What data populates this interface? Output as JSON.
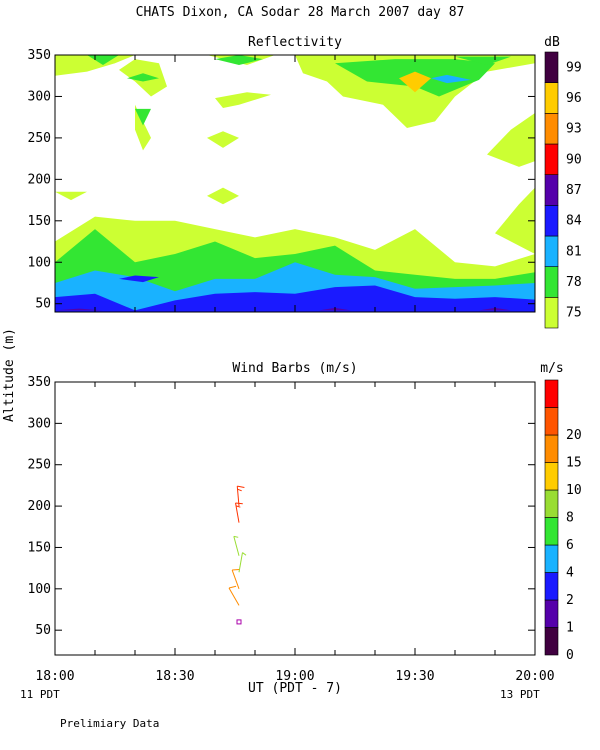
{
  "header": {
    "title": "CHATS Dixon, CA   Sodar  28 March 2007   day  87"
  },
  "footer": {
    "left_note": "11 PDT",
    "right_note": "13 PDT",
    "preliminary": "Prelimiary Data"
  },
  "chart_data": [
    {
      "type": "heatmap",
      "title": "Reflectivity",
      "ylabel": "Altitude (m)",
      "xlabel": "UT  (PDT - 7)",
      "x_ticks": [
        "18:00",
        "18:30",
        "19:00",
        "19:30",
        "20:00"
      ],
      "x_range": [
        "18:00",
        "20:00"
      ],
      "y_ticks": [
        50,
        100,
        150,
        200,
        250,
        300,
        350
      ],
      "ylim": [
        40,
        350
      ],
      "colorbar": {
        "unit": "dB",
        "labels": [
          75,
          78,
          81,
          84,
          87,
          90,
          93,
          96,
          99
        ],
        "colors": [
          "#ccff33",
          "#33e633",
          "#19b2ff",
          "#1a1aff",
          "#5500aa",
          "#ff0000",
          "#ff8c00",
          "#ffcc00",
          "#400040"
        ]
      },
      "bands": [
        {
          "level_dB": 84,
          "color": "#1a1aff",
          "upper": [
            [
              0,
              58
            ],
            [
              10,
              62
            ],
            [
              20,
              42
            ],
            [
              30,
              54
            ],
            [
              40,
              62
            ],
            [
              50,
              64
            ],
            [
              60,
              62
            ],
            [
              70,
              70
            ],
            [
              80,
              72
            ],
            [
              90,
              58
            ],
            [
              100,
              56
            ],
            [
              110,
              58
            ],
            [
              120,
              55
            ]
          ]
        },
        {
          "level_dB": 81,
          "color": "#19b2ff",
          "upper": [
            [
              0,
              75
            ],
            [
              10,
              90
            ],
            [
              20,
              82
            ],
            [
              30,
              65
            ],
            [
              40,
              80
            ],
            [
              50,
              80
            ],
            [
              60,
              100
            ],
            [
              70,
              85
            ],
            [
              80,
              82
            ],
            [
              90,
              68
            ],
            [
              100,
              70
            ],
            [
              110,
              72
            ],
            [
              120,
              75
            ]
          ]
        },
        {
          "level_dB": 78,
          "color": "#33e633",
          "upper": [
            [
              0,
              100
            ],
            [
              10,
              140
            ],
            [
              20,
              100
            ],
            [
              30,
              110
            ],
            [
              40,
              125
            ],
            [
              50,
              105
            ],
            [
              60,
              110
            ],
            [
              70,
              120
            ],
            [
              80,
              90
            ],
            [
              90,
              85
            ],
            [
              100,
              80
            ],
            [
              110,
              80
            ],
            [
              120,
              88
            ]
          ]
        },
        {
          "level_dB": 75,
          "color": "#ccff33",
          "upper": [
            [
              0,
              125
            ],
            [
              10,
              155
            ],
            [
              20,
              150
            ],
            [
              30,
              150
            ],
            [
              40,
              140
            ],
            [
              50,
              130
            ],
            [
              60,
              140
            ],
            [
              70,
              130
            ],
            [
              80,
              115
            ],
            [
              90,
              140
            ],
            [
              100,
              100
            ],
            [
              110,
              95
            ],
            [
              120,
              110
            ]
          ]
        }
      ],
      "patches": [
        {
          "level_dB": 75,
          "color": "#ccff33",
          "points": [
            [
              0,
              350
            ],
            [
              0,
              325
            ],
            [
              8,
              330
            ],
            [
              15,
              340
            ],
            [
              20,
              350
            ]
          ]
        },
        {
          "level_dB": 75,
          "color": "#ccff33",
          "points": [
            [
              38,
              350
            ],
            [
              48,
              338
            ],
            [
              55,
              350
            ]
          ]
        },
        {
          "level_dB": 75,
          "color": "#ccff33",
          "points": [
            [
              60,
              350
            ],
            [
              62,
              328
            ],
            [
              68,
              318
            ],
            [
              72,
              300
            ],
            [
              82,
              290
            ],
            [
              88,
              262
            ],
            [
              95,
              270
            ],
            [
              100,
              300
            ],
            [
              108,
              330
            ],
            [
              120,
              340
            ],
            [
              120,
              350
            ]
          ]
        },
        {
          "level_dB": 75,
          "color": "#ccff33",
          "points": [
            [
              16,
              332
            ],
            [
              20,
              318
            ],
            [
              24,
              300
            ],
            [
              28,
              312
            ],
            [
              26,
              340
            ],
            [
              20,
              345
            ]
          ]
        },
        {
          "level_dB": 75,
          "color": "#ccff33",
          "points": [
            [
              20,
              290
            ],
            [
              24,
              250
            ],
            [
              22,
              235
            ],
            [
              20,
              260
            ]
          ]
        },
        {
          "level_dB": 75,
          "color": "#ccff33",
          "points": [
            [
              40,
              298
            ],
            [
              48,
              305
            ],
            [
              54,
              302
            ],
            [
              46,
              290
            ],
            [
              42,
              286
            ]
          ]
        },
        {
          "level_dB": 75,
          "color": "#ccff33",
          "points": [
            [
              38,
              250
            ],
            [
              42,
              238
            ],
            [
              46,
              250
            ],
            [
              42,
              258
            ]
          ]
        },
        {
          "level_dB": 75,
          "color": "#ccff33",
          "points": [
            [
              38,
              180
            ],
            [
              42,
              170
            ],
            [
              46,
              180
            ],
            [
              42,
              190
            ]
          ]
        },
        {
          "level_dB": 75,
          "color": "#ccff33",
          "points": [
            [
              0,
              185
            ],
            [
              4,
              175
            ],
            [
              8,
              185
            ]
          ]
        },
        {
          "level_dB": 75,
          "color": "#ccff33",
          "points": [
            [
              108,
              230
            ],
            [
              116,
              215
            ],
            [
              120,
              222
            ],
            [
              120,
              280
            ],
            [
              114,
              260
            ]
          ]
        },
        {
          "level_dB": 75,
          "color": "#ccff33",
          "points": [
            [
              110,
              135
            ],
            [
              116,
              170
            ],
            [
              120,
              190
            ],
            [
              120,
              110
            ]
          ]
        },
        {
          "level_dB": 78,
          "color": "#33e633",
          "points": [
            [
              8,
              350
            ],
            [
              12,
              338
            ],
            [
              16,
              350
            ]
          ]
        },
        {
          "level_dB": 78,
          "color": "#33e633",
          "points": [
            [
              18,
              322
            ],
            [
              22,
              318
            ],
            [
              26,
              322
            ],
            [
              22,
              328
            ]
          ]
        },
        {
          "level_dB": 78,
          "color": "#33e633",
          "points": [
            [
              20,
              285
            ],
            [
              22,
              265
            ],
            [
              24,
              285
            ]
          ]
        },
        {
          "level_dB": 78,
          "color": "#33e633",
          "points": [
            [
              40,
              345
            ],
            [
              46,
              338
            ],
            [
              52,
              345
            ],
            [
              46,
              350
            ]
          ]
        },
        {
          "level_dB": 78,
          "color": "#33e633",
          "points": [
            [
              70,
              340
            ],
            [
              78,
              318
            ],
            [
              90,
              312
            ],
            [
              96,
              300
            ],
            [
              106,
              320
            ],
            [
              110,
              340
            ],
            [
              100,
              345
            ],
            [
              85,
              345
            ]
          ]
        },
        {
          "level_dB": 78,
          "color": "#33e633",
          "points": [
            [
              100,
              348
            ],
            [
              108,
              338
            ],
            [
              114,
              348
            ]
          ]
        },
        {
          "level_dB": 81,
          "color": "#19b2ff",
          "points": [
            [
              94,
              322
            ],
            [
              98,
              316
            ],
            [
              104,
              320
            ],
            [
              98,
              326
            ]
          ]
        },
        {
          "level_dB": 96,
          "color": "#ffcc00",
          "points": [
            [
              86,
              322
            ],
            [
              90,
              305
            ],
            [
              94,
              322
            ],
            [
              90,
              330
            ]
          ]
        },
        {
          "level_dB": 87,
          "color": "#5500aa",
          "points": [
            [
              0,
              42
            ],
            [
              6,
              44
            ],
            [
              12,
              42
            ]
          ]
        },
        {
          "level_dB": 87,
          "color": "#5500aa",
          "points": [
            [
              66,
              42
            ],
            [
              70,
              45
            ],
            [
              74,
              42
            ]
          ]
        },
        {
          "level_dB": 87,
          "color": "#5500aa",
          "points": [
            [
              106,
              42
            ],
            [
              110,
              45
            ],
            [
              114,
              42
            ]
          ]
        },
        {
          "level_dB": 84,
          "color": "#1a1aff",
          "points": [
            [
              16,
              80
            ],
            [
              20,
              84
            ],
            [
              26,
              82
            ],
            [
              22,
              76
            ]
          ]
        }
      ]
    },
    {
      "type": "scatter",
      "title": "Wind Barbs (m/s)",
      "ylabel": "Altitude (m)",
      "xlabel": "UT  (PDT - 7)",
      "x_ticks": [
        "18:00",
        "18:30",
        "19:00",
        "19:30",
        "20:00"
      ],
      "x_range": [
        "18:00",
        "20:00"
      ],
      "y_ticks": [
        50,
        100,
        150,
        200,
        250,
        300,
        350
      ],
      "ylim": [
        20,
        350
      ],
      "colorbar": {
        "unit": "m/s",
        "labels": [
          0,
          1,
          2,
          4,
          6,
          8,
          10,
          15,
          20
        ],
        "colors": [
          "#400040",
          "#5500aa",
          "#1a1aff",
          "#19b2ff",
          "#33e633",
          "#99dd33",
          "#ffcc00",
          "#ff8c00",
          "#ff5500",
          "#ff0000"
        ]
      },
      "barbs": [
        {
          "time": "18:46",
          "alt": 60,
          "speed": 0.5,
          "dir_deg": 0,
          "color": "#aa00aa"
        },
        {
          "time": "18:46",
          "alt": 80,
          "speed": 12,
          "dir_deg": 330,
          "color": "#ff8c00"
        },
        {
          "time": "18:46",
          "alt": 100,
          "speed": 11,
          "dir_deg": 340,
          "color": "#ff8c00"
        },
        {
          "time": "18:46",
          "alt": 120,
          "speed": 7,
          "dir_deg": 10,
          "color": "#99dd33"
        },
        {
          "time": "18:46",
          "alt": 140,
          "speed": 7,
          "dir_deg": 345,
          "color": "#99dd33"
        },
        {
          "time": "18:46",
          "alt": 180,
          "speed": 16,
          "dir_deg": 350,
          "color": "#ff3300"
        },
        {
          "time": "18:46",
          "alt": 200,
          "speed": 17,
          "dir_deg": 355,
          "color": "#ff3300"
        }
      ]
    }
  ]
}
